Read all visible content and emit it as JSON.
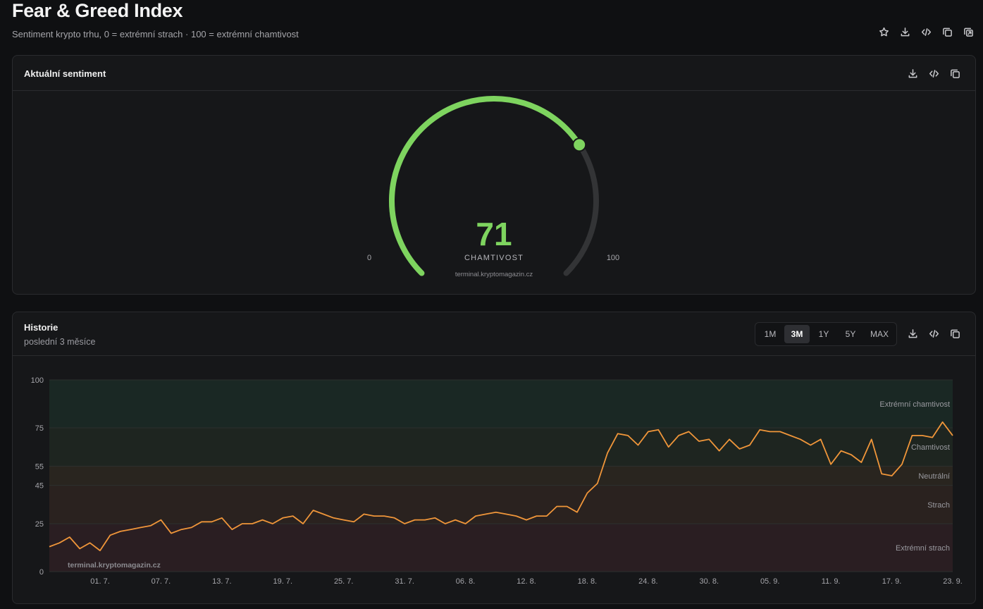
{
  "header": {
    "title": "Fear & Greed Index",
    "subtitle": "Sentiment krypto trhu, 0 = extrémní strach · 100 = extrémní chamtivost",
    "tools": [
      "star-icon",
      "download-icon",
      "code-icon",
      "copy-icon",
      "external-copy-icon"
    ]
  },
  "gauge_panel": {
    "title": "Aktuální sentiment",
    "value": "71",
    "label": "CHAMTIVOST",
    "min_label": "0",
    "max_label": "100",
    "watermark": "terminal.kryptomagazin.cz",
    "value_color": "#7ed45f",
    "track_color": "#333436",
    "tools": [
      "download-icon",
      "code-icon",
      "copy-icon"
    ]
  },
  "history_panel": {
    "title": "Historie",
    "subtitle": "poslední 3 měsíce",
    "ranges": [
      "1M",
      "3M",
      "1Y",
      "5Y",
      "MAX"
    ],
    "active_range": "3M",
    "watermark": "terminal.kryptomagazin.cz",
    "tools": [
      "download-icon",
      "code-icon",
      "copy-icon"
    ]
  },
  "chart_data": {
    "type": "line",
    "line_color": "#f0963a",
    "ylim": [
      0,
      100
    ],
    "y_ticks": [
      "0",
      "25",
      "45",
      "55",
      "75",
      "100"
    ],
    "x_ticks": [
      "01. 7.",
      "07. 7.",
      "13. 7.",
      "19. 7.",
      "25. 7.",
      "31. 7.",
      "06. 8.",
      "12. 8.",
      "18. 8.",
      "24. 8.",
      "30. 8.",
      "05. 9.",
      "11. 9.",
      "17. 9.",
      "23. 9."
    ],
    "zones": [
      {
        "label": "Extrémní strach",
        "from": 0,
        "to": 25,
        "color": "#2a1e22"
      },
      {
        "label": "Strach",
        "from": 25,
        "to": 45,
        "color": "#2a221f"
      },
      {
        "label": "Neutrální",
        "from": 45,
        "to": 55,
        "color": "#29251f"
      },
      {
        "label": "Chamtivost",
        "from": 55,
        "to": 75,
        "color": "#1e2520"
      },
      {
        "label": "Extrémní chamtivost",
        "from": 75,
        "to": 100,
        "color": "#1a2824"
      }
    ],
    "series": [
      {
        "values": [
          13,
          15,
          18,
          12,
          15,
          11,
          19,
          21,
          22,
          23,
          24,
          27,
          20,
          22,
          23,
          26,
          26,
          28,
          22,
          25,
          25,
          27,
          25,
          28,
          29,
          25,
          32,
          30,
          28,
          27,
          26,
          30,
          29,
          29,
          28,
          25,
          27,
          27,
          28,
          25,
          27,
          25,
          29,
          30,
          31,
          30,
          29,
          27,
          29,
          29,
          34,
          34,
          31,
          41,
          46,
          62,
          72,
          71,
          66,
          73,
          74,
          65,
          71,
          73,
          68,
          69,
          63,
          69,
          64,
          66,
          74,
          73,
          73,
          71,
          69,
          66,
          69,
          56,
          63,
          61,
          57,
          69,
          51,
          50,
          56,
          71,
          71,
          70,
          78,
          71
        ]
      }
    ]
  }
}
